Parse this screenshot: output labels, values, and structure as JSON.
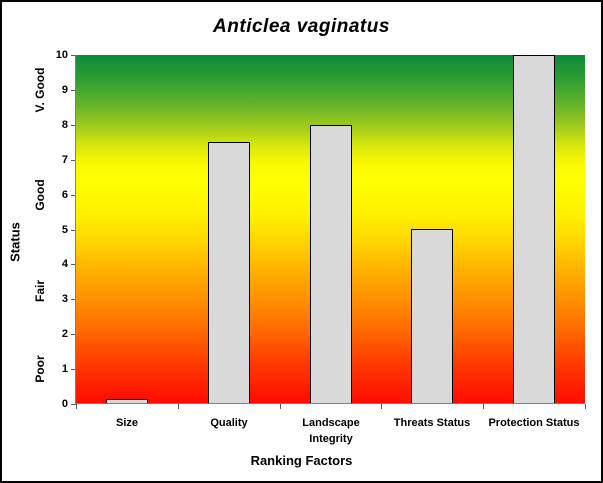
{
  "chart_data": {
    "type": "bar",
    "title": "Anticlea vaginatus",
    "xlabel": "Ranking Factors",
    "ylabel": "Status",
    "categories": [
      "Size",
      "Quality",
      "Landscape Integrity",
      "Threats Status",
      "Protection Status"
    ],
    "values": [
      0.15,
      7.5,
      8,
      5,
      10
    ],
    "ylim": [
      0,
      10
    ],
    "yticks": [
      0,
      1,
      2,
      3,
      4,
      5,
      6,
      7,
      8,
      9,
      10
    ],
    "grid": "off",
    "legend": "none",
    "status_bands": [
      {
        "label": "Poor",
        "center_value": 1.0
      },
      {
        "label": "Fair",
        "center_value": 3.25
      },
      {
        "label": "Good",
        "center_value": 6.0
      },
      {
        "label": "V. Good",
        "center_value": 9.0
      }
    ],
    "colors": {
      "bar_fill": "#d9d9d9",
      "bar_border": "#000000",
      "axis_line": "#808080",
      "tick_mark": "#595959",
      "text": "#000000",
      "frame_border": "#000000",
      "background": "#ffffff"
    },
    "plot_background_gradient": [
      {
        "pos": 0,
        "color": "#0d8a3a"
      },
      {
        "pos": 7,
        "color": "#2f9e33"
      },
      {
        "pos": 14,
        "color": "#63b22b"
      },
      {
        "pos": 20,
        "color": "#9cc81d"
      },
      {
        "pos": 26,
        "color": "#d8e60c"
      },
      {
        "pos": 31,
        "color": "#f8fa02"
      },
      {
        "pos": 36,
        "color": "#ffff00"
      },
      {
        "pos": 45,
        "color": "#fff200"
      },
      {
        "pos": 53,
        "color": "#ffd800"
      },
      {
        "pos": 61,
        "color": "#ffb400"
      },
      {
        "pos": 70,
        "color": "#ff9000"
      },
      {
        "pos": 79,
        "color": "#ff6a00"
      },
      {
        "pos": 88,
        "color": "#ff3c00"
      },
      {
        "pos": 100,
        "color": "#ff0a00"
      }
    ]
  }
}
